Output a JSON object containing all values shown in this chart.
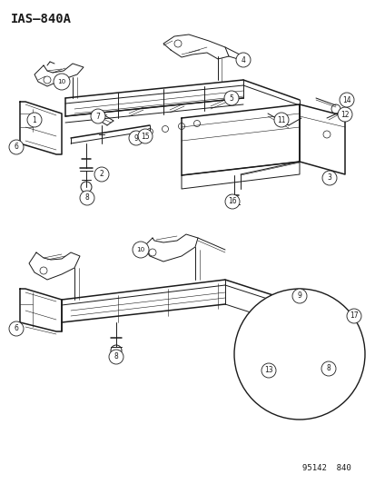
{
  "title": "IAS–840A",
  "footer": "95142  840",
  "bg_color": "#ffffff",
  "line_color": "#1a1a1a",
  "title_fontsize": 10,
  "footer_fontsize": 6.5,
  "label_fontsize": 5.5,
  "lw_main": 0.7,
  "lw_thick": 1.1,
  "lw_thin": 0.4,
  "circle_r": 0.016
}
